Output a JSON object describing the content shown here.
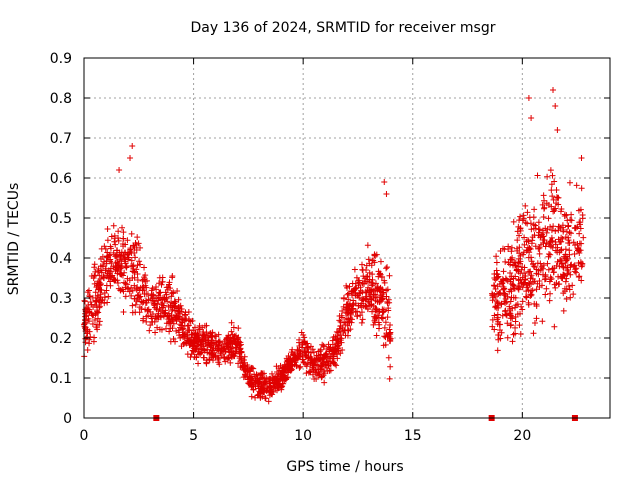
{
  "chart_data": {
    "type": "scatter",
    "title": "Day 136 of 2024, SRMTID for receiver msgr",
    "xlabel": "GPS time / hours",
    "ylabel": "SRMTID / TECUs",
    "xlim": [
      0,
      24
    ],
    "ylim": [
      0,
      0.9
    ],
    "xticks": [
      "0",
      "5",
      "10",
      "15",
      "20"
    ],
    "yticks": [
      "0",
      "0.1",
      "0.2",
      "0.3",
      "0.4",
      "0.5",
      "0.6",
      "0.7",
      "0.8",
      "0.9"
    ],
    "grid": true,
    "marker": "+",
    "color": "#e00000",
    "baseline_markers_x": [
      3.3,
      18.6,
      22.4
    ],
    "series": [
      {
        "name": "SRMTID",
        "profile": [
          {
            "x": 0.0,
            "y": 0.24,
            "spread": 0.06
          },
          {
            "x": 0.5,
            "y": 0.28,
            "spread": 0.1
          },
          {
            "x": 1.0,
            "y": 0.38,
            "spread": 0.08
          },
          {
            "x": 1.5,
            "y": 0.38,
            "spread": 0.09
          },
          {
            "x": 2.0,
            "y": 0.36,
            "spread": 0.1
          },
          {
            "x": 2.5,
            "y": 0.35,
            "spread": 0.09
          },
          {
            "x": 3.0,
            "y": 0.27,
            "spread": 0.05
          },
          {
            "x": 3.5,
            "y": 0.29,
            "spread": 0.06
          },
          {
            "x": 4.0,
            "y": 0.27,
            "spread": 0.06
          },
          {
            "x": 4.5,
            "y": 0.23,
            "spread": 0.05
          },
          {
            "x": 5.0,
            "y": 0.19,
            "spread": 0.05
          },
          {
            "x": 5.5,
            "y": 0.19,
            "spread": 0.04
          },
          {
            "x": 6.0,
            "y": 0.17,
            "spread": 0.04
          },
          {
            "x": 6.5,
            "y": 0.17,
            "spread": 0.04
          },
          {
            "x": 7.0,
            "y": 0.19,
            "spread": 0.04
          },
          {
            "x": 7.5,
            "y": 0.1,
            "spread": 0.03
          },
          {
            "x": 8.0,
            "y": 0.08,
            "spread": 0.03
          },
          {
            "x": 8.5,
            "y": 0.08,
            "spread": 0.03
          },
          {
            "x": 9.0,
            "y": 0.1,
            "spread": 0.03
          },
          {
            "x": 9.5,
            "y": 0.14,
            "spread": 0.03
          },
          {
            "x": 10.0,
            "y": 0.18,
            "spread": 0.04
          },
          {
            "x": 10.5,
            "y": 0.13,
            "spread": 0.03
          },
          {
            "x": 11.0,
            "y": 0.14,
            "spread": 0.04
          },
          {
            "x": 11.5,
            "y": 0.18,
            "spread": 0.05
          },
          {
            "x": 12.0,
            "y": 0.27,
            "spread": 0.06
          },
          {
            "x": 12.5,
            "y": 0.3,
            "spread": 0.06
          },
          {
            "x": 13.0,
            "y": 0.33,
            "spread": 0.08
          },
          {
            "x": 13.5,
            "y": 0.3,
            "spread": 0.1
          },
          {
            "x": 14.0,
            "y": 0.22,
            "spread": 0.1
          }
        ],
        "profile_late": [
          {
            "x": 18.6,
            "y": 0.3,
            "spread": 0.1
          },
          {
            "x": 19.0,
            "y": 0.3,
            "spread": 0.1
          },
          {
            "x": 19.5,
            "y": 0.33,
            "spread": 0.12
          },
          {
            "x": 20.0,
            "y": 0.38,
            "spread": 0.14
          },
          {
            "x": 20.5,
            "y": 0.4,
            "spread": 0.15
          },
          {
            "x": 21.0,
            "y": 0.42,
            "spread": 0.15
          },
          {
            "x": 21.5,
            "y": 0.45,
            "spread": 0.15
          },
          {
            "x": 22.0,
            "y": 0.4,
            "spread": 0.12
          },
          {
            "x": 22.5,
            "y": 0.42,
            "spread": 0.12
          },
          {
            "x": 22.8,
            "y": 0.45,
            "spread": 0.12
          }
        ],
        "peaks": [
          {
            "x": 2.2,
            "y": 0.68
          },
          {
            "x": 2.1,
            "y": 0.65
          },
          {
            "x": 1.6,
            "y": 0.62
          },
          {
            "x": 13.7,
            "y": 0.59
          },
          {
            "x": 13.8,
            "y": 0.56
          },
          {
            "x": 20.3,
            "y": 0.8
          },
          {
            "x": 20.4,
            "y": 0.75
          },
          {
            "x": 21.4,
            "y": 0.82
          },
          {
            "x": 21.5,
            "y": 0.78
          },
          {
            "x": 21.6,
            "y": 0.72
          },
          {
            "x": 22.7,
            "y": 0.65
          }
        ]
      }
    ]
  }
}
